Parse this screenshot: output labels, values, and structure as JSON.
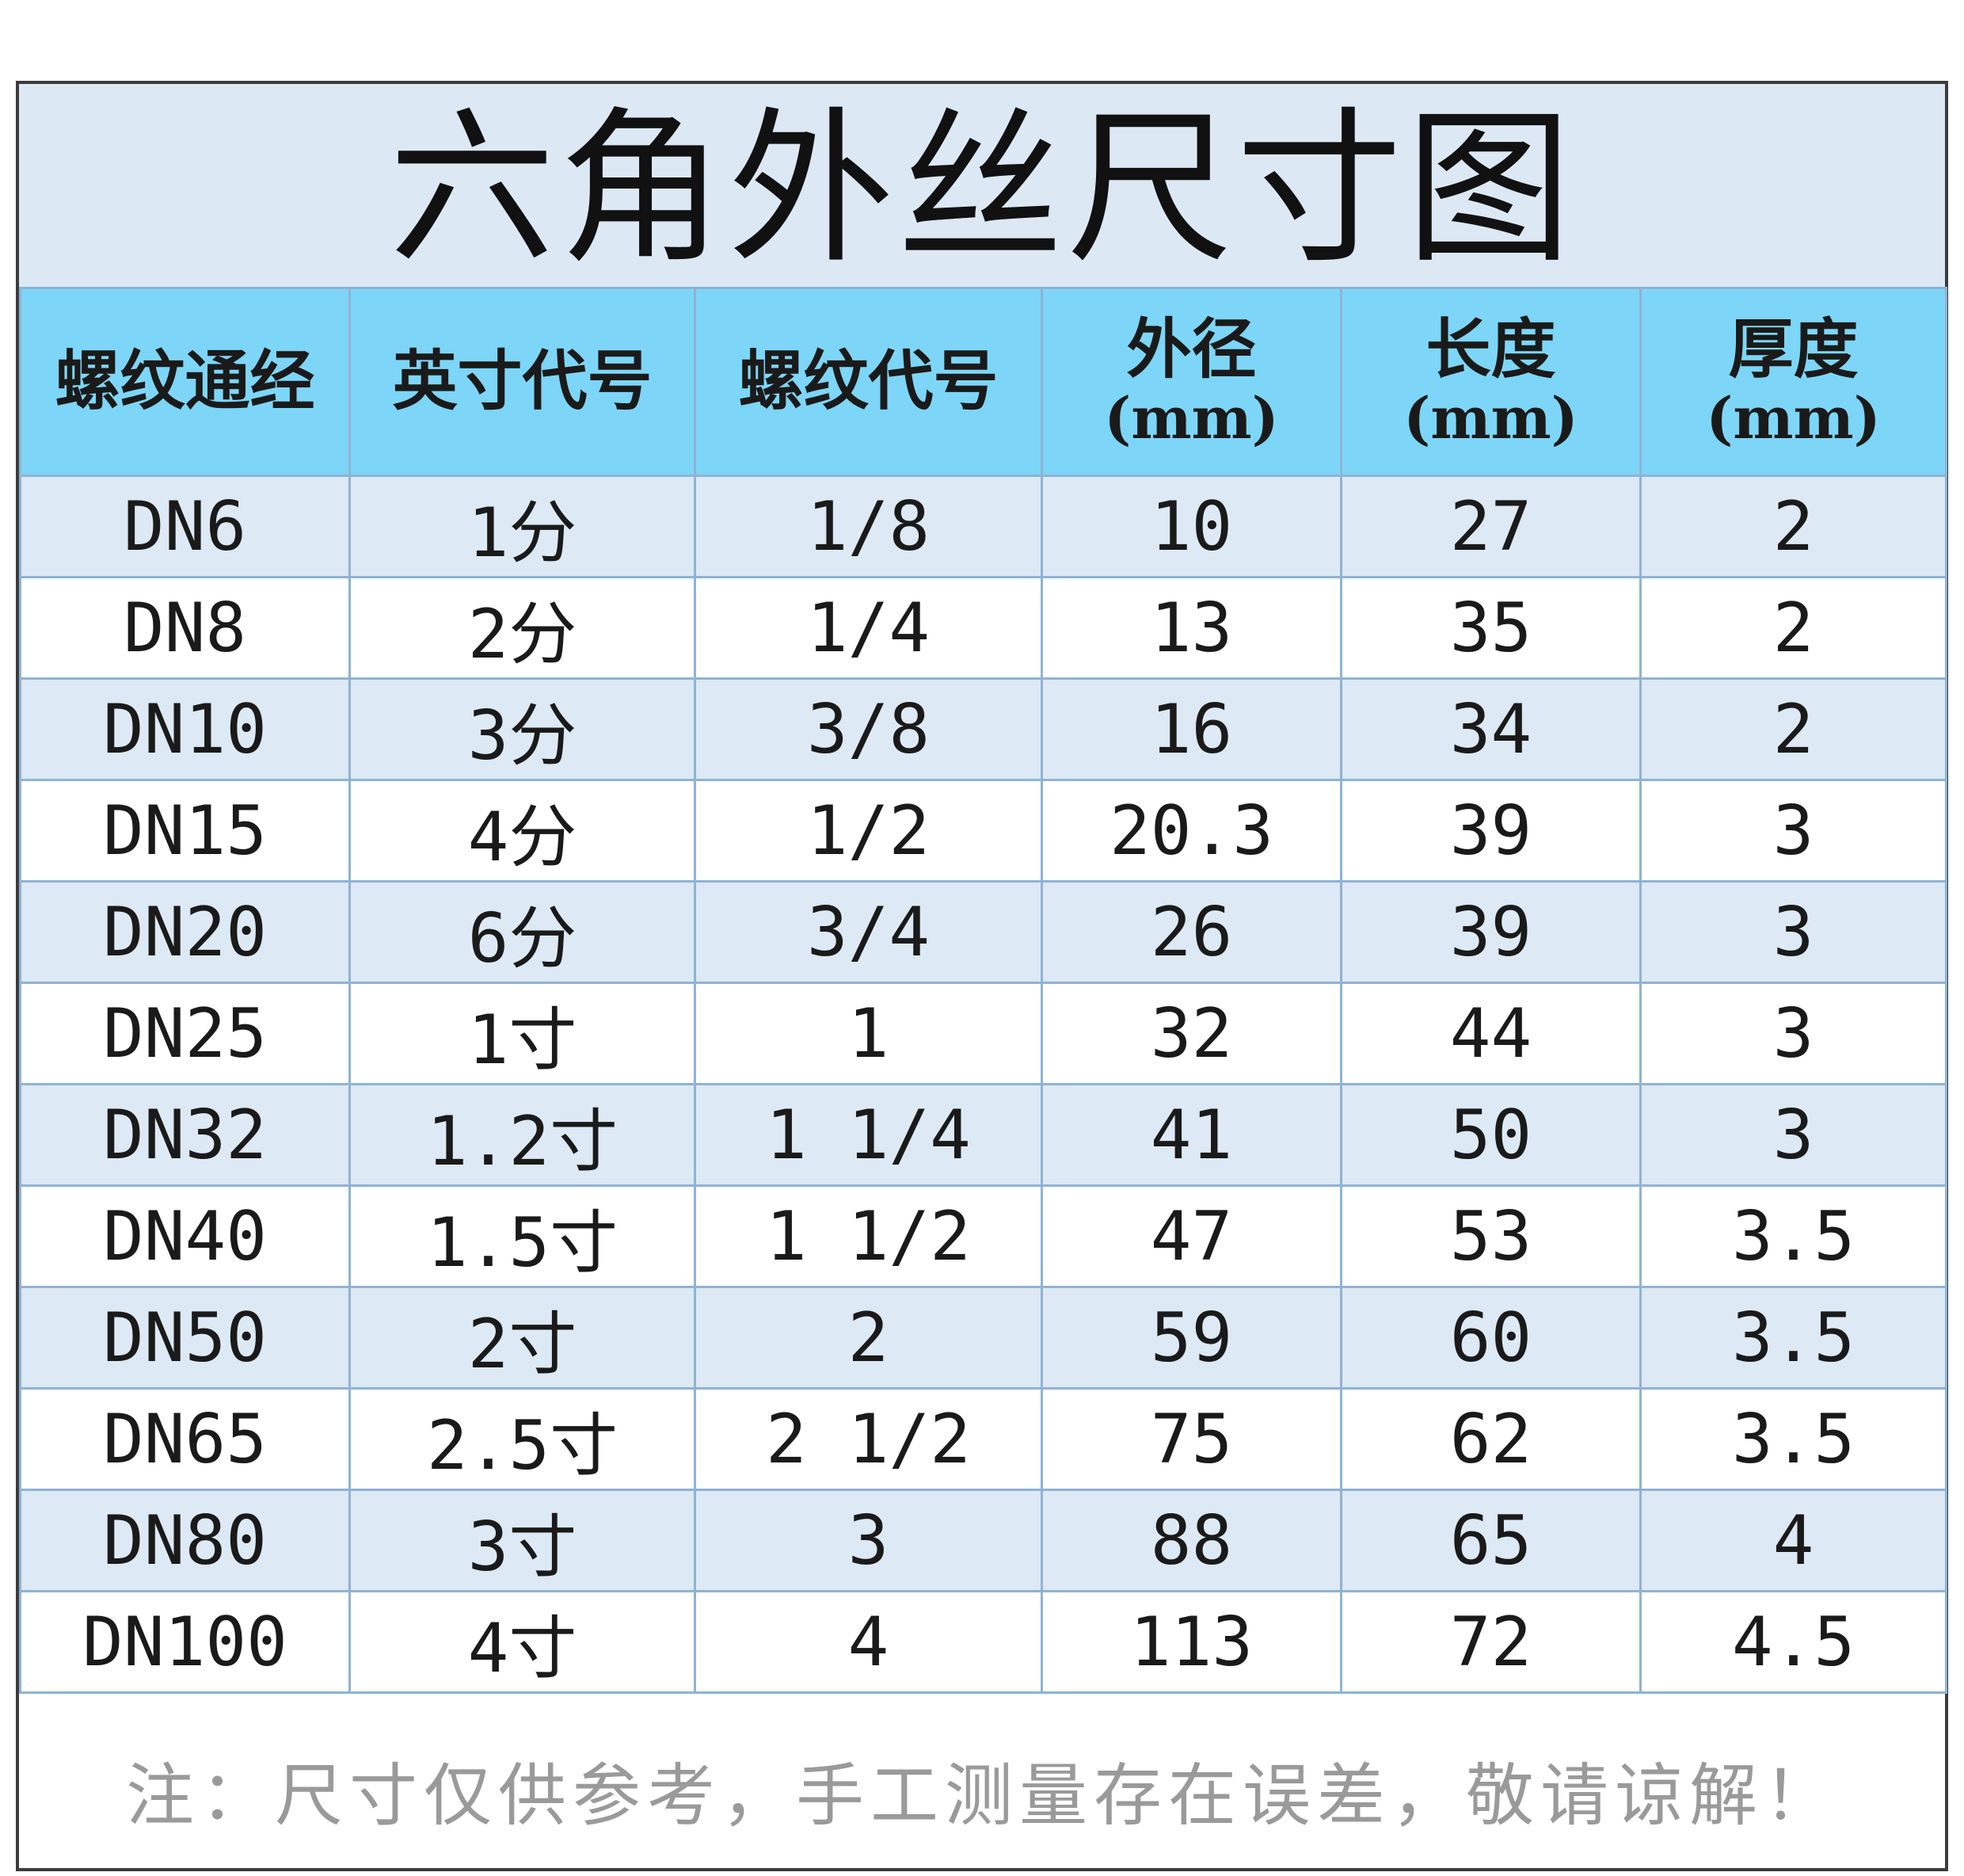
{
  "title": "六角外丝尺寸图",
  "headers": [
    {
      "label": "螺纹通经",
      "unit": ""
    },
    {
      "label": "英寸代号",
      "unit": ""
    },
    {
      "label": "螺纹代号",
      "unit": ""
    },
    {
      "label": "外径",
      "unit": "(mm)"
    },
    {
      "label": "长度",
      "unit": "(mm)"
    },
    {
      "label": "厚度",
      "unit": "(mm)"
    }
  ],
  "rows": [
    [
      "DN6",
      "1分",
      "1/8",
      "10",
      "27",
      "2"
    ],
    [
      "DN8",
      "2分",
      "1/4",
      "13",
      "35",
      "2"
    ],
    [
      "DN10",
      "3分",
      "3/8",
      "16",
      "34",
      "2"
    ],
    [
      "DN15",
      "4分",
      "1/2",
      "20.3",
      "39",
      "3"
    ],
    [
      "DN20",
      "6分",
      "3/4",
      "26",
      "39",
      "3"
    ],
    [
      "DN25",
      "1寸",
      "1",
      "32",
      "44",
      "3"
    ],
    [
      "DN32",
      "1.2寸",
      "1 1/4",
      "41",
      "50",
      "3"
    ],
    [
      "DN40",
      "1.5寸",
      "1 1/2",
      "47",
      "53",
      "3.5"
    ],
    [
      "DN50",
      "2寸",
      "2",
      "59",
      "60",
      "3.5"
    ],
    [
      "DN65",
      "2.5寸",
      "2 1/2",
      "75",
      "62",
      "3.5"
    ],
    [
      "DN80",
      "3寸",
      "3",
      "88",
      "65",
      "4"
    ],
    [
      "DN100",
      "4寸",
      "4",
      "113",
      "72",
      "4.5"
    ]
  ],
  "note": "注：尺寸仅供参考，手工测量存在误差，敬请谅解！",
  "colors": {
    "header_bg": "#7dd6f7",
    "title_bg": "#dce9f4",
    "odd_row_bg": "#dde9f4",
    "even_row_bg": "#ffffff",
    "grid": "#8fb3d4",
    "note_text": "#9a9a9a"
  }
}
